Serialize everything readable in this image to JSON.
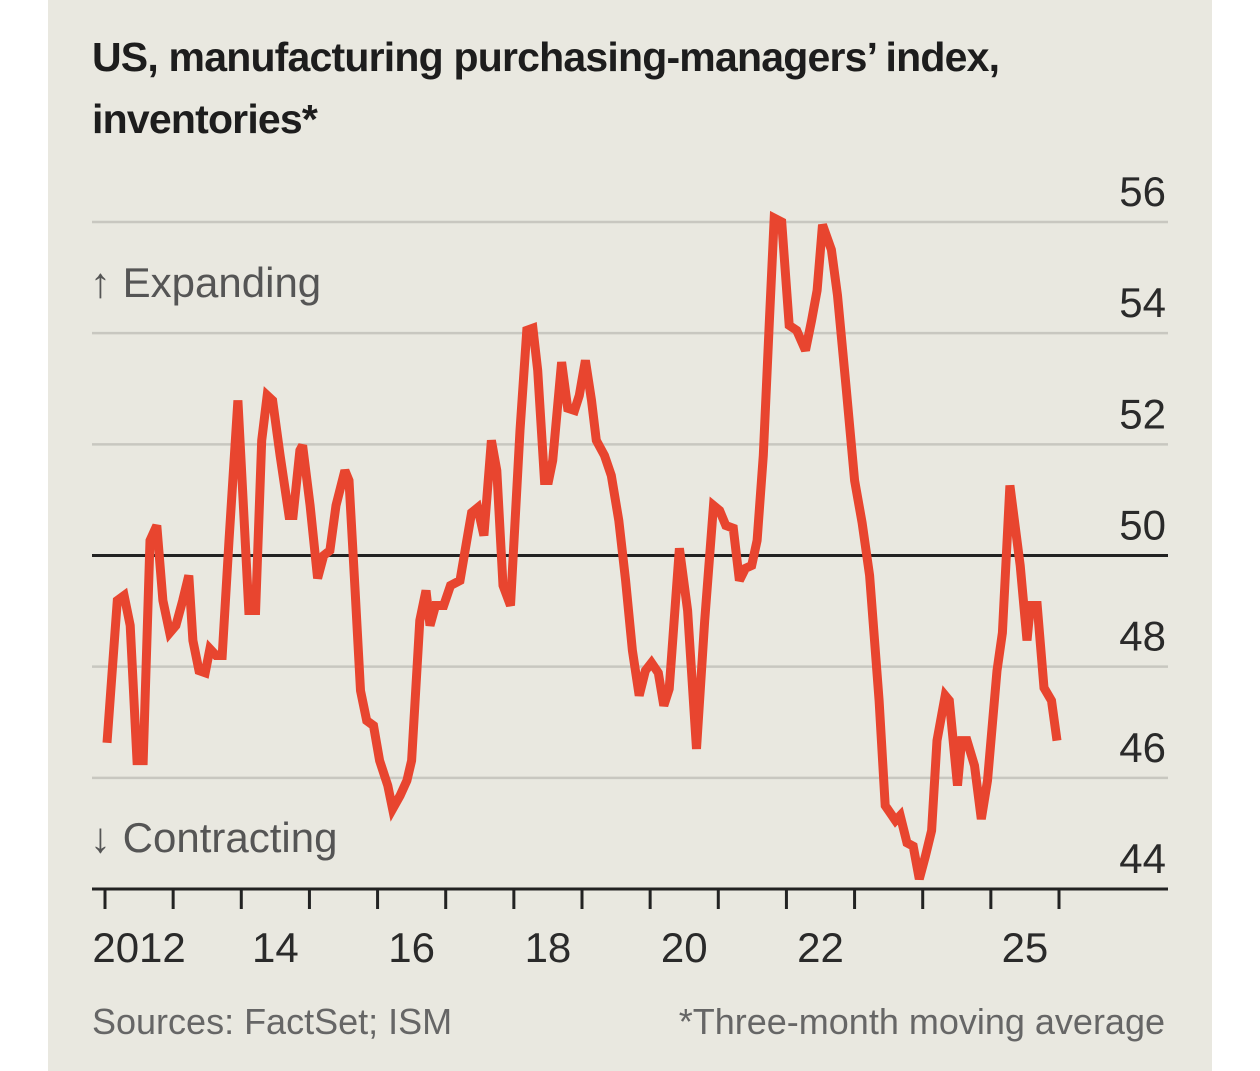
{
  "chart_data": {
    "type": "line",
    "title": "US, manufacturing purchasing-managers’ index, inventories*",
    "xlabel": "",
    "ylabel": "",
    "ylim": [
      44,
      56
    ],
    "xlim": [
      2012,
      2026
    ],
    "yticks": [
      "44",
      "46",
      "48",
      "50",
      "52",
      "54",
      "56"
    ],
    "xtick_labels": [
      {
        "label": "2012",
        "year": 2012
      },
      {
        "label": "14",
        "year": 2014
      },
      {
        "label": "16",
        "year": 2016
      },
      {
        "label": "18",
        "year": 2018
      },
      {
        "label": "20",
        "year": 2020
      },
      {
        "label": "22",
        "year": 2022
      },
      {
        "label": "25",
        "year": 2025
      }
    ],
    "grid": true,
    "reference_line": 50,
    "annotations": {
      "up": "↑ Expanding",
      "down": "↓ Contracting"
    },
    "source": "Sources: FactSet; ISM",
    "footnote": "*Three-month moving average",
    "line_color": "#e8452f",
    "series": [
      {
        "points": [
          [
            2012.03,
            46.63
          ],
          [
            2012.18,
            49.19
          ],
          [
            2012.28,
            49.28
          ],
          [
            2012.37,
            48.74
          ],
          [
            2012.47,
            46.31
          ],
          [
            2012.56,
            46.31
          ],
          [
            2012.66,
            50.27
          ],
          [
            2012.76,
            50.54
          ],
          [
            2012.85,
            49.19
          ],
          [
            2012.95,
            48.61
          ],
          [
            2013.04,
            48.74
          ],
          [
            2013.14,
            49.19
          ],
          [
            2013.23,
            49.64
          ],
          [
            2013.29,
            48.47
          ],
          [
            2013.38,
            47.93
          ],
          [
            2013.47,
            47.89
          ],
          [
            2013.54,
            48.32
          ],
          [
            2013.63,
            48.2
          ],
          [
            2013.72,
            48.2
          ],
          [
            2013.82,
            50.27
          ],
          [
            2013.95,
            52.79
          ],
          [
            2014.02,
            51.17
          ],
          [
            2014.11,
            49.01
          ],
          [
            2014.21,
            49.01
          ],
          [
            2014.3,
            52.07
          ],
          [
            2014.38,
            52.88
          ],
          [
            2014.46,
            52.79
          ],
          [
            2014.57,
            51.8
          ],
          [
            2014.7,
            50.72
          ],
          [
            2014.76,
            50.72
          ],
          [
            2014.86,
            51.89
          ],
          [
            2014.9,
            51.98
          ],
          [
            2015.01,
            50.9
          ],
          [
            2015.12,
            49.59
          ],
          [
            2015.21,
            50.0
          ],
          [
            2015.3,
            50.09
          ],
          [
            2015.39,
            50.9
          ],
          [
            2015.52,
            51.53
          ],
          [
            2015.58,
            51.35
          ],
          [
            2015.67,
            49.37
          ],
          [
            2015.75,
            47.57
          ],
          [
            2015.84,
            47.03
          ],
          [
            2015.94,
            46.94
          ],
          [
            2016.03,
            46.31
          ],
          [
            2016.15,
            45.86
          ],
          [
            2016.22,
            45.44
          ],
          [
            2016.33,
            45.68
          ],
          [
            2016.43,
            45.95
          ],
          [
            2016.5,
            46.31
          ],
          [
            2016.62,
            48.83
          ],
          [
            2016.71,
            49.37
          ],
          [
            2016.77,
            48.74
          ],
          [
            2016.85,
            49.1
          ],
          [
            2016.97,
            49.1
          ],
          [
            2017.07,
            49.46
          ],
          [
            2017.21,
            49.55
          ],
          [
            2017.31,
            50.27
          ],
          [
            2017.38,
            50.77
          ],
          [
            2017.47,
            50.86
          ],
          [
            2017.56,
            50.36
          ],
          [
            2017.67,
            52.07
          ],
          [
            2017.75,
            51.53
          ],
          [
            2017.84,
            49.46
          ],
          [
            2017.95,
            49.1
          ],
          [
            2018.09,
            52.25
          ],
          [
            2018.19,
            54.05
          ],
          [
            2018.28,
            54.09
          ],
          [
            2018.35,
            53.33
          ],
          [
            2018.45,
            51.35
          ],
          [
            2018.51,
            51.35
          ],
          [
            2018.57,
            51.71
          ],
          [
            2018.7,
            53.48
          ],
          [
            2018.79,
            52.65
          ],
          [
            2018.89,
            52.61
          ],
          [
            2018.96,
            52.88
          ],
          [
            2019.05,
            53.51
          ],
          [
            2019.14,
            52.79
          ],
          [
            2019.21,
            52.07
          ],
          [
            2019.33,
            51.8
          ],
          [
            2019.43,
            51.44
          ],
          [
            2019.54,
            50.63
          ],
          [
            2019.64,
            49.55
          ],
          [
            2019.74,
            48.29
          ],
          [
            2019.84,
            47.48
          ],
          [
            2019.93,
            47.93
          ],
          [
            2020.02,
            48.07
          ],
          [
            2020.12,
            47.89
          ],
          [
            2020.2,
            47.3
          ],
          [
            2020.28,
            47.6
          ],
          [
            2020.43,
            50.13
          ],
          [
            2020.55,
            49.01
          ],
          [
            2020.68,
            46.52
          ],
          [
            2020.8,
            48.83
          ],
          [
            2020.93,
            50.9
          ],
          [
            2021.02,
            50.81
          ],
          [
            2021.11,
            50.54
          ],
          [
            2021.22,
            50.49
          ],
          [
            2021.31,
            49.55
          ],
          [
            2021.4,
            49.77
          ],
          [
            2021.49,
            49.82
          ],
          [
            2021.57,
            50.27
          ],
          [
            2021.66,
            51.8
          ],
          [
            2021.75,
            54.23
          ],
          [
            2021.82,
            56.07
          ],
          [
            2021.93,
            56.0
          ],
          [
            2022.04,
            54.14
          ],
          [
            2022.15,
            54.05
          ],
          [
            2022.28,
            53.69
          ],
          [
            2022.37,
            54.23
          ],
          [
            2022.45,
            54.77
          ],
          [
            2022.53,
            55.95
          ],
          [
            2022.66,
            55.5
          ],
          [
            2022.75,
            54.68
          ],
          [
            2022.88,
            52.97
          ],
          [
            2023.0,
            51.35
          ],
          [
            2023.11,
            50.59
          ],
          [
            2023.22,
            49.64
          ],
          [
            2023.36,
            47.39
          ],
          [
            2023.45,
            45.5
          ],
          [
            2023.6,
            45.23
          ],
          [
            2023.67,
            45.32
          ],
          [
            2023.77,
            44.83
          ],
          [
            2023.86,
            44.77
          ],
          [
            2023.95,
            44.18
          ],
          [
            2024.04,
            44.59
          ],
          [
            2024.13,
            45.05
          ],
          [
            2024.21,
            46.67
          ],
          [
            2024.33,
            47.48
          ],
          [
            2024.39,
            47.39
          ],
          [
            2024.51,
            45.86
          ],
          [
            2024.57,
            46.67
          ],
          [
            2024.65,
            46.67
          ],
          [
            2024.76,
            46.22
          ],
          [
            2024.86,
            45.26
          ],
          [
            2024.95,
            45.95
          ],
          [
            2025.09,
            47.93
          ],
          [
            2025.17,
            48.61
          ],
          [
            2025.28,
            51.26
          ],
          [
            2025.43,
            49.82
          ],
          [
            2025.53,
            48.47
          ],
          [
            2025.58,
            49.1
          ],
          [
            2025.68,
            49.1
          ],
          [
            2025.78,
            47.62
          ],
          [
            2025.89,
            47.39
          ],
          [
            2025.97,
            46.67
          ]
        ]
      }
    ]
  }
}
